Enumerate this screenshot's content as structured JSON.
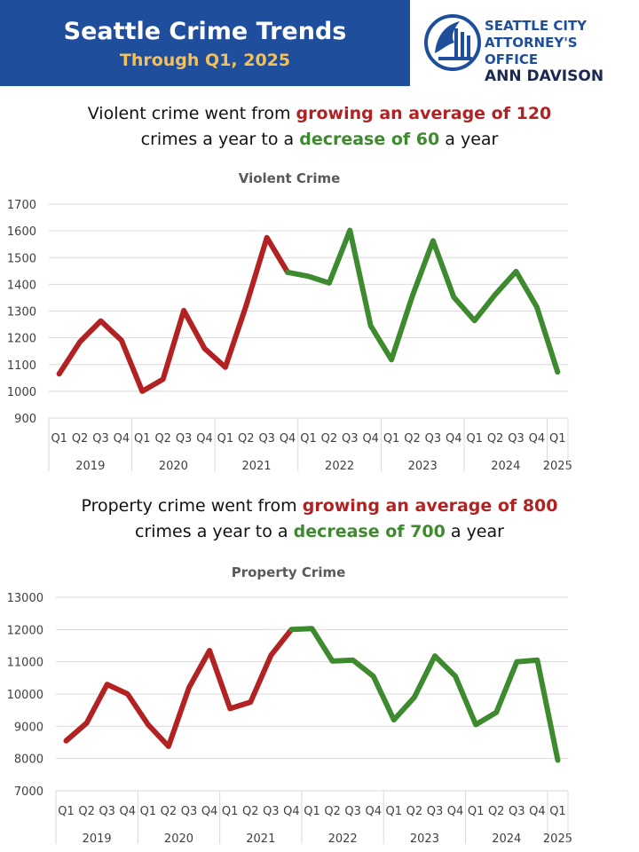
{
  "header": {
    "title": "Seattle Crime Trends",
    "subtitle": "Through Q1, 2025",
    "logo_line1": "SEATTLE CITY",
    "logo_line2": "ATTORNEY'S OFFICE",
    "logo_line3": "ANN DAVISON"
  },
  "violent_summary": {
    "part1": "Violent crime went from ",
    "highlight1": "growing an average of 120",
    "part2": "crimes a year to a ",
    "highlight2": "decrease of 60",
    "part3": " a year"
  },
  "property_summary": {
    "part1": "Property crime went from ",
    "highlight1": "growing an average of 800",
    "part2": "crimes a year to a ",
    "highlight2": "decrease of 700",
    "part3": " a year"
  },
  "colors": {
    "banner": "#1f4e9c",
    "subtitle": "#f2c05c",
    "growth": "#b22222",
    "decline": "#3e8a2e"
  },
  "chart_data": [
    {
      "type": "line",
      "title": "Violent Crime",
      "quarters": [
        "Q1",
        "Q2",
        "Q3",
        "Q4",
        "Q1",
        "Q2",
        "Q3",
        "Q4",
        "Q1",
        "Q2",
        "Q3",
        "Q4",
        "Q1",
        "Q2",
        "Q3",
        "Q4",
        "Q1",
        "Q2",
        "Q3",
        "Q4",
        "Q1",
        "Q2",
        "Q3",
        "Q4",
        "Q1"
      ],
      "years": [
        {
          "label": "2019",
          "count": 4
        },
        {
          "label": "2020",
          "count": 4
        },
        {
          "label": "2021",
          "count": 4
        },
        {
          "label": "2022",
          "count": 4
        },
        {
          "label": "2023",
          "count": 4
        },
        {
          "label": "2024",
          "count": 4
        },
        {
          "label": "2025",
          "count": 1
        }
      ],
      "values": [
        1065,
        1185,
        1263,
        1190,
        1000,
        1045,
        1302,
        1160,
        1090,
        1320,
        1575,
        1445,
        1430,
        1405,
        1602,
        1245,
        1118,
        1355,
        1563,
        1352,
        1264,
        1362,
        1448,
        1315,
        1072
      ],
      "growth_until_index": 11,
      "ylim": [
        900,
        1700
      ],
      "yticks": [
        900,
        1000,
        1100,
        1200,
        1300,
        1400,
        1500,
        1600,
        1700
      ],
      "grid": true,
      "legend": "none"
    },
    {
      "type": "line",
      "title": "Property Crime",
      "quarters": [
        "Q1",
        "Q2",
        "Q3",
        "Q4",
        "Q1",
        "Q2",
        "Q3",
        "Q4",
        "Q1",
        "Q2",
        "Q3",
        "Q4",
        "Q1",
        "Q2",
        "Q3",
        "Q4",
        "Q1",
        "Q2",
        "Q3",
        "Q4",
        "Q1",
        "Q2",
        "Q3",
        "Q4",
        "Q1"
      ],
      "years": [
        {
          "label": "2019",
          "count": 4
        },
        {
          "label": "2020",
          "count": 4
        },
        {
          "label": "2021",
          "count": 4
        },
        {
          "label": "2022",
          "count": 4
        },
        {
          "label": "2023",
          "count": 4
        },
        {
          "label": "2024",
          "count": 4
        },
        {
          "label": "2025",
          "count": 1
        }
      ],
      "values": [
        8550,
        9100,
        10300,
        10000,
        9050,
        8380,
        10200,
        11350,
        9550,
        9750,
        11200,
        12000,
        12030,
        11020,
        11050,
        10550,
        9200,
        9900,
        11180,
        10550,
        9050,
        9430,
        11000,
        11050,
        7950
      ],
      "growth_until_index": 11,
      "ylim": [
        7000,
        13000
      ],
      "yticks": [
        7000,
        8000,
        9000,
        10000,
        11000,
        12000,
        13000
      ],
      "grid": true,
      "legend": "none"
    }
  ]
}
